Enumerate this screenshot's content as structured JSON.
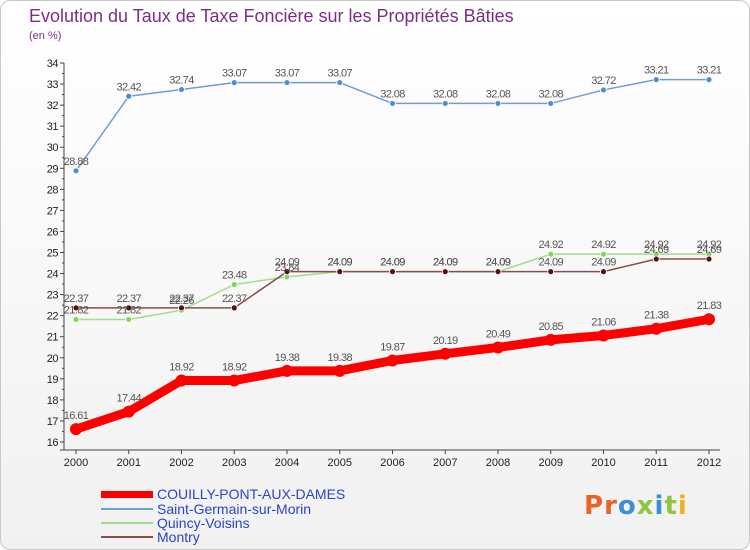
{
  "title": "Evolution du Taux de Taxe Foncière sur les Propriétés Bâties",
  "subtitle": "(en %)",
  "logo_text": "Proxiti",
  "colors": {
    "title": "#7b2e86",
    "axis": "#444444",
    "legend_text": "#2b44c8",
    "logo": [
      "#e8622a",
      "#e8622a",
      "#3b8fd4",
      "#8ec63f",
      "#3b8fd4",
      "#8ec63f",
      "#f3b11b"
    ]
  },
  "chart_data": {
    "type": "line",
    "x": [
      "2000",
      "2001",
      "2002",
      "2003",
      "2004",
      "2005",
      "2006",
      "2007",
      "2008",
      "2009",
      "2010",
      "2011",
      "2012"
    ],
    "ylim": [
      16,
      34
    ],
    "yticks": [
      16,
      17,
      18,
      19,
      20,
      21,
      22,
      23,
      24,
      25,
      26,
      27,
      28,
      29,
      30,
      31,
      32,
      33,
      34
    ],
    "xlabel": "",
    "ylabel": "",
    "grid": false,
    "legend_position": "bottom-left",
    "series": [
      {
        "name": "COUILLY-PONT-AUX-DAMES",
        "color": "#ff0000",
        "marker": "#ff0000",
        "emphasis": "bold",
        "values": [
          16.61,
          17.44,
          18.92,
          18.92,
          19.38,
          19.38,
          19.87,
          20.19,
          20.49,
          20.85,
          21.06,
          21.38,
          21.83
        ],
        "labels": [
          "16.61",
          "17.44",
          "18.92",
          "18.92",
          "19.38",
          "19.38",
          "19.87",
          "20.19",
          "20.49",
          "20.85",
          "21.06",
          "21.38",
          "21.83"
        ]
      },
      {
        "name": "Saint-Germain-sur-Morin",
        "color": "#6f9fcf",
        "marker": "#4b8fd4",
        "emphasis": "normal",
        "values": [
          28.88,
          32.42,
          32.74,
          33.07,
          33.07,
          33.07,
          32.08,
          32.08,
          32.08,
          32.08,
          32.72,
          33.21,
          33.21
        ],
        "labels": [
          "28.88",
          "32.42",
          "32.74",
          "33.07",
          "33.07",
          "33.07",
          "32.08",
          "32.08",
          "32.08",
          "32.08",
          "32.72",
          "33.21",
          "33.21"
        ]
      },
      {
        "name": "Quincy-Voisins",
        "color": "#a3dc8a",
        "marker": "#7ed957",
        "emphasis": "normal",
        "values": [
          21.82,
          21.82,
          22.26,
          23.48,
          23.84,
          24.09,
          24.09,
          24.09,
          24.09,
          24.92,
          24.92,
          24.92,
          24.92
        ],
        "labels": [
          "21.82",
          "21.82",
          "22.26",
          "23.48",
          "23.84",
          "24.09",
          "24.09",
          "24.09",
          "24.09",
          "24.92",
          "24.92",
          "24.92",
          "24.92"
        ]
      },
      {
        "name": "Montry",
        "color": "#8a4b4b",
        "marker": "#5a1010",
        "emphasis": "normal",
        "values": [
          22.37,
          22.37,
          22.37,
          22.37,
          24.09,
          24.09,
          24.09,
          24.09,
          24.09,
          24.09,
          24.09,
          24.69,
          24.69
        ],
        "labels": [
          "22.37",
          "22.37",
          "22.37",
          "22.37",
          "24.09",
          "24.09",
          "24.09",
          "24.09",
          "24.09",
          "24.09",
          "24.09",
          "24.69",
          "24.69"
        ]
      }
    ]
  }
}
